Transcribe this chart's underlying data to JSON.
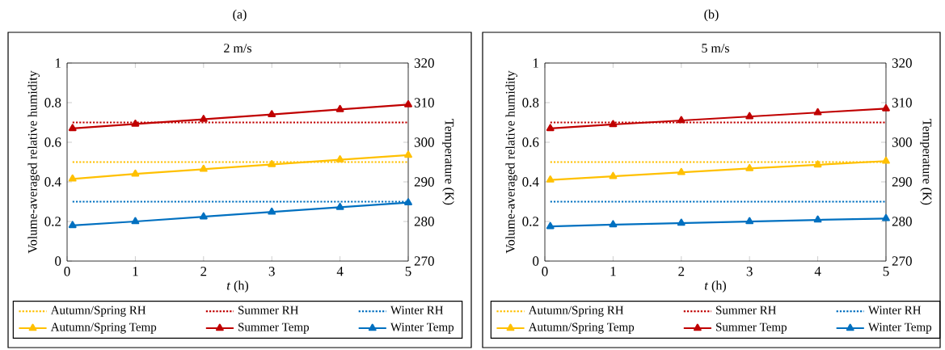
{
  "chart_data": [
    {
      "type": "line",
      "title": "(a)",
      "subtitle": "2 m/s",
      "xlabel": "*t* (h)",
      "ylabel": "Volume-averaged relative humidity",
      "y2label": "Temperature (K)",
      "xlim": [
        0,
        5
      ],
      "xticks": [
        0,
        1,
        2,
        3,
        4,
        5
      ],
      "ylim": [
        0,
        1
      ],
      "yticks": [
        0,
        0.2,
        0.4,
        0.6,
        0.8,
        1
      ],
      "y2lim": [
        270,
        320
      ],
      "y2ticks": [
        270,
        280,
        290,
        300,
        310,
        320
      ],
      "legend": "bottom",
      "series": [
        {
          "name": "Autumn/Spring RH",
          "color": "#ffc000",
          "x": [
            0.08,
            5
          ],
          "values": [
            0.5,
            0.5
          ],
          "line_style": "dotted",
          "marker": "none"
        },
        {
          "name": "Summer RH",
          "color": "#c00000",
          "x": [
            0.08,
            5
          ],
          "values": [
            0.7,
            0.7
          ],
          "line_style": "dotted",
          "marker": "none"
        },
        {
          "name": "Winter RH",
          "color": "#0070c0",
          "x": [
            0.08,
            5
          ],
          "values": [
            0.3,
            0.3
          ],
          "line_style": "dotted",
          "marker": "none"
        },
        {
          "name": "Autumn/Spring Temp",
          "color": "#ffc000",
          "axis": "y2",
          "x": [
            0.08,
            1,
            2,
            3,
            4,
            5
          ],
          "values": [
            290.75,
            292,
            293.2,
            294.4,
            295.6,
            296.75
          ],
          "line_style": "solid",
          "marker": "triangle"
        },
        {
          "name": "Summer Temp",
          "color": "#c00000",
          "axis": "y2",
          "x": [
            0.08,
            1,
            2,
            3,
            4,
            5
          ],
          "values": [
            303.5,
            304.6,
            305.8,
            307,
            308.3,
            309.5
          ],
          "line_style": "solid",
          "marker": "triangle"
        },
        {
          "name": "Winter Temp",
          "color": "#0070c0",
          "axis": "y2",
          "x": [
            0.08,
            1,
            2,
            3,
            4,
            5
          ],
          "values": [
            279,
            280,
            281.2,
            282.4,
            283.6,
            284.75
          ],
          "line_style": "solid",
          "marker": "triangle"
        }
      ]
    },
    {
      "type": "line",
      "title": "(b)",
      "subtitle": "5 m/s",
      "xlabel": "*t* (h)",
      "ylabel": "Volume-averaged relative humidity",
      "y2label": "Temperature (K)",
      "xlim": [
        0,
        5
      ],
      "xticks": [
        0,
        1,
        2,
        3,
        4,
        5
      ],
      "ylim": [
        0,
        1
      ],
      "yticks": [
        0,
        0.2,
        0.4,
        0.6,
        0.8,
        1
      ],
      "y2lim": [
        270,
        320
      ],
      "y2ticks": [
        270,
        280,
        290,
        300,
        310,
        320
      ],
      "legend": "bottom",
      "series": [
        {
          "name": "Autumn/Spring RH",
          "color": "#ffc000",
          "x": [
            0.08,
            5
          ],
          "values": [
            0.5,
            0.5
          ],
          "line_style": "dotted",
          "marker": "none"
        },
        {
          "name": "Summer RH",
          "color": "#c00000",
          "x": [
            0.08,
            5
          ],
          "values": [
            0.7,
            0.7
          ],
          "line_style": "dotted",
          "marker": "none"
        },
        {
          "name": "Winter RH",
          "color": "#0070c0",
          "x": [
            0.08,
            5
          ],
          "values": [
            0.3,
            0.3
          ],
          "line_style": "dotted",
          "marker": "none"
        },
        {
          "name": "Autumn/Spring Temp",
          "color": "#ffc000",
          "axis": "y2",
          "x": [
            0.08,
            1,
            2,
            3,
            4,
            5
          ],
          "values": [
            290.5,
            291.4,
            292.4,
            293.4,
            294.3,
            295.25
          ],
          "line_style": "solid",
          "marker": "triangle"
        },
        {
          "name": "Summer Temp",
          "color": "#c00000",
          "axis": "y2",
          "x": [
            0.08,
            1,
            2,
            3,
            4,
            5
          ],
          "values": [
            303.5,
            304.5,
            305.5,
            306.5,
            307.5,
            308.5
          ],
          "line_style": "solid",
          "marker": "triangle"
        },
        {
          "name": "Winter Temp",
          "color": "#0070c0",
          "axis": "y2",
          "x": [
            0.08,
            1,
            2,
            3,
            4,
            5
          ],
          "values": [
            278.75,
            279.2,
            279.6,
            280,
            280.4,
            280.75
          ],
          "line_style": "solid",
          "marker": "triangle"
        }
      ]
    }
  ]
}
